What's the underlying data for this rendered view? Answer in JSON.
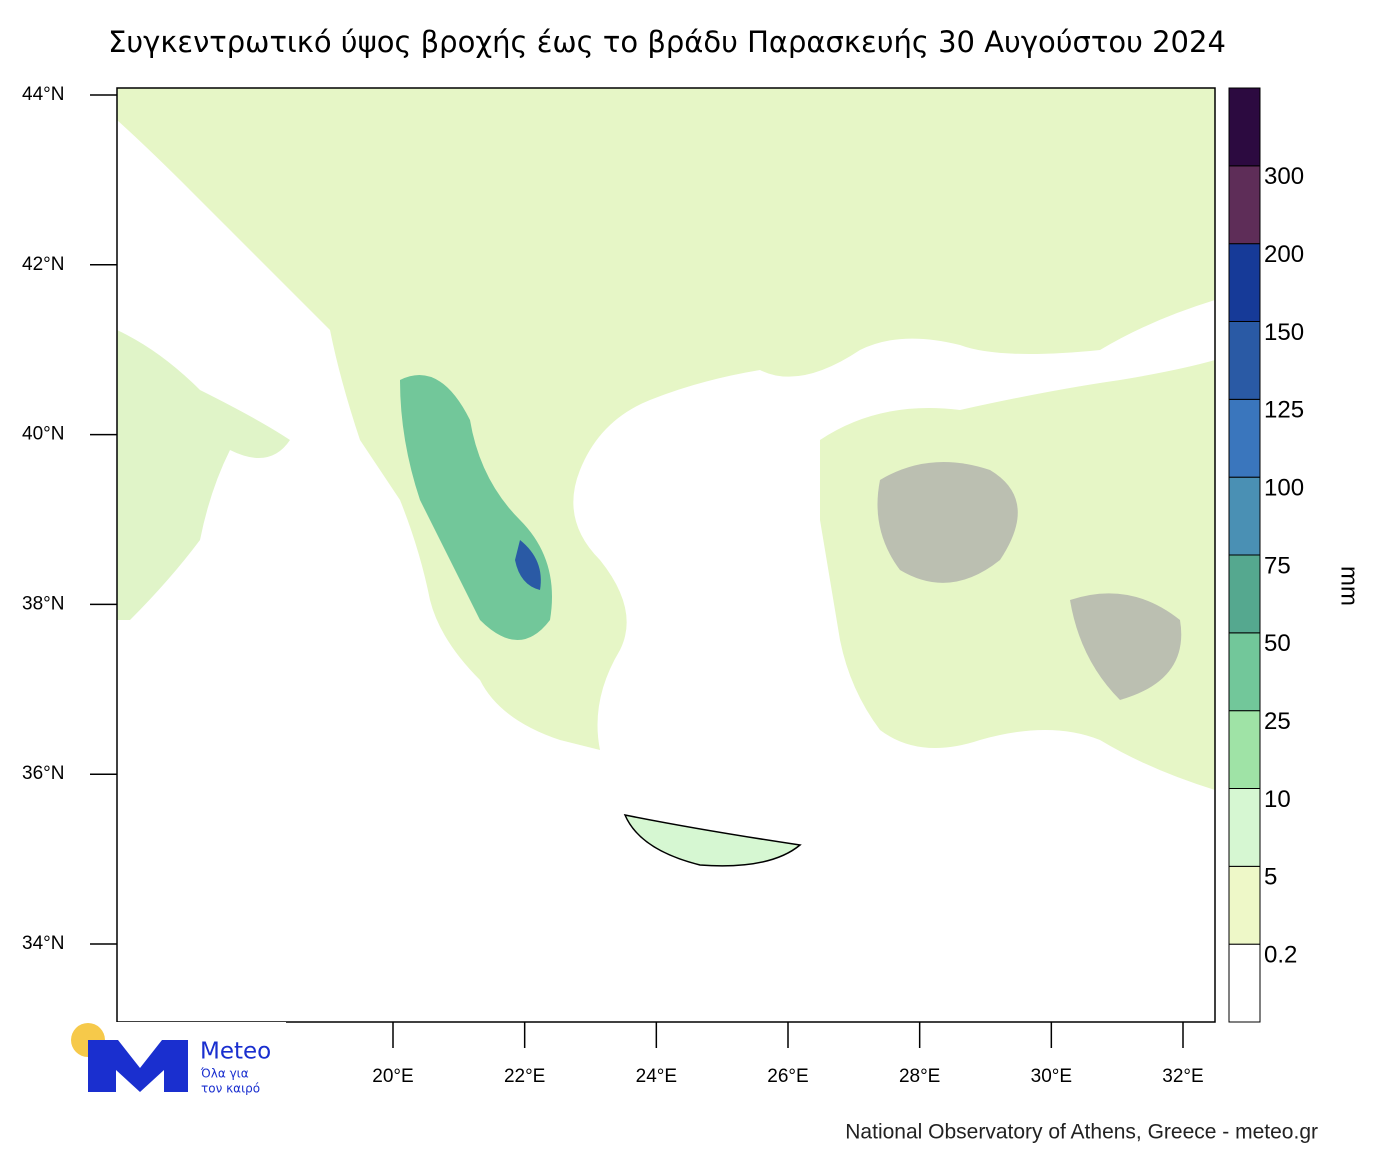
{
  "title": "Συγκεντρωτικό ύψος βροχής έως το βράδυ Παρασκευής 30 Αυγούστου 2024",
  "map": {
    "lat_ticks": [
      {
        "value": 44,
        "label": "44°N"
      },
      {
        "value": 42,
        "label": "42°N"
      },
      {
        "value": 40,
        "label": "40°N"
      },
      {
        "value": 38,
        "label": "38°N"
      },
      {
        "value": 36,
        "label": "36°N"
      },
      {
        "value": 34,
        "label": "34°N"
      }
    ],
    "lon_ticks": [
      {
        "value": 20,
        "label": "20°E"
      },
      {
        "value": 22,
        "label": "22°E"
      },
      {
        "value": 24,
        "label": "24°E"
      },
      {
        "value": 26,
        "label": "26°E"
      },
      {
        "value": 28,
        "label": "28°E"
      },
      {
        "value": 30,
        "label": "30°E"
      },
      {
        "value": 32,
        "label": "32°E"
      }
    ]
  },
  "colorbar": {
    "unit": "mm",
    "levels": [
      0.2,
      5,
      10,
      25,
      50,
      75,
      100,
      125,
      150,
      200,
      300
    ],
    "colors": [
      "#ffffff",
      "#eef8c8",
      "#d6f7d2",
      "#9fe3a6",
      "#72c79a",
      "#55a88f",
      "#4a90b4",
      "#3a76bd",
      "#2a5aa5",
      "#163a98",
      "#5e2d58",
      "#2c0a40"
    ]
  },
  "logo": {
    "name": "Meteo",
    "tagline": [
      "Όλα για",
      "τον καιρό"
    ]
  },
  "credit": "National Observatory of Athens, Greece - meteo.gr"
}
